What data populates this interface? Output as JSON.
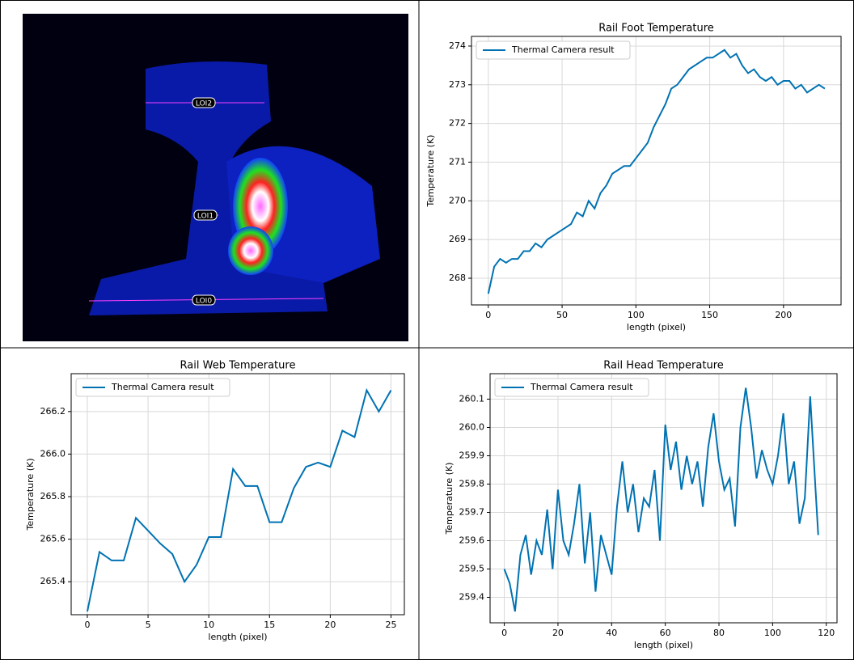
{
  "image": {
    "labels": [
      "LOI2",
      "LOI1",
      "LOI0"
    ]
  },
  "chart_data": [
    {
      "type": "line",
      "title": "Rail Foot Temperature",
      "x_label": "length (pixel)",
      "y_label": "Temperature (K)",
      "x": [
        0,
        4,
        8,
        12,
        16,
        20,
        24,
        28,
        32,
        36,
        40,
        44,
        48,
        52,
        56,
        60,
        64,
        68,
        72,
        76,
        80,
        84,
        88,
        92,
        96,
        100,
        104,
        108,
        112,
        116,
        120,
        124,
        128,
        132,
        136,
        140,
        144,
        148,
        152,
        156,
        160,
        164,
        168,
        172,
        176,
        180,
        184,
        188,
        192,
        196,
        200,
        204,
        208,
        212,
        216,
        220,
        224,
        228
      ],
      "series": [
        {
          "name": "Thermal Camera result",
          "color": "#0072b2",
          "values": [
            267.6,
            268.3,
            268.5,
            268.4,
            268.5,
            268.5,
            268.7,
            268.7,
            268.9,
            268.8,
            269.0,
            269.1,
            269.2,
            269.3,
            269.4,
            269.7,
            269.6,
            270.0,
            269.8,
            270.2,
            270.4,
            270.7,
            270.8,
            270.9,
            270.9,
            271.1,
            271.3,
            271.5,
            271.9,
            272.2,
            272.5,
            272.9,
            273.0,
            273.2,
            273.4,
            273.5,
            273.6,
            273.7,
            273.7,
            273.8,
            273.9,
            273.7,
            273.8,
            273.5,
            273.3,
            273.4,
            273.2,
            273.1,
            273.2,
            273.0,
            273.1,
            273.1,
            272.9,
            273.0,
            272.8,
            272.9,
            273.0,
            272.9
          ]
        }
      ],
      "xlim": [
        -11.4,
        239
      ],
      "xticks": [
        0,
        50,
        100,
        150,
        200
      ],
      "ylim": [
        267.31,
        274.25
      ],
      "yticks": [
        268,
        269,
        270,
        271,
        272,
        273,
        274
      ],
      "grid": true,
      "legend": "upper left"
    },
    {
      "type": "line",
      "title": "Rail Web Temperature",
      "x_label": "length (pixel)",
      "y_label": "Temperature (K)",
      "x": [
        0,
        1,
        2,
        3,
        4,
        5,
        6,
        7,
        8,
        9,
        10,
        11,
        12,
        13,
        14,
        15,
        16,
        17,
        18,
        19,
        20,
        21,
        22,
        23,
        24,
        25
      ],
      "series": [
        {
          "name": "Thermal Camera result",
          "color": "#0072b2",
          "values": [
            265.26,
            265.54,
            265.5,
            265.5,
            265.7,
            265.64,
            265.58,
            265.53,
            265.4,
            265.48,
            265.61,
            265.61,
            265.93,
            265.85,
            265.85,
            265.68,
            265.68,
            265.84,
            265.94,
            265.96,
            265.94,
            266.11,
            266.08,
            266.3,
            266.2,
            266.3
          ]
        }
      ],
      "xlim": [
        -1.33,
        26.1
      ],
      "xticks": [
        0,
        5,
        10,
        15,
        20,
        25
      ],
      "ylim": [
        265.245,
        266.378
      ],
      "yticks": [
        265.4,
        265.6,
        265.8,
        {
          "value": 266,
          "label": "266.0"
        },
        266.2
      ],
      "grid": true,
      "legend": "upper left"
    },
    {
      "type": "line",
      "title": "Rail Head Temperature",
      "x_label": "length (pixel)",
      "y_label": "Temperature (K)",
      "x": [
        0,
        2,
        4,
        6,
        8,
        10,
        12,
        14,
        16,
        18,
        20,
        22,
        24,
        26,
        28,
        30,
        32,
        34,
        36,
        38,
        40,
        42,
        44,
        46,
        48,
        50,
        52,
        54,
        56,
        58,
        60,
        62,
        64,
        66,
        68,
        70,
        72,
        74,
        76,
        78,
        80,
        82,
        84,
        86,
        88,
        90,
        92,
        94,
        96,
        98,
        100,
        102,
        104,
        106,
        108,
        110,
        112,
        114,
        116,
        117
      ],
      "series": [
        {
          "name": "Thermal Camera result",
          "color": "#0072b2",
          "values": [
            259.5,
            259.45,
            259.35,
            259.55,
            259.62,
            259.48,
            259.6,
            259.55,
            259.71,
            259.5,
            259.78,
            259.6,
            259.55,
            259.66,
            259.8,
            259.52,
            259.7,
            259.42,
            259.62,
            259.55,
            259.48,
            259.72,
            259.88,
            259.7,
            259.8,
            259.63,
            259.75,
            259.72,
            259.85,
            259.6,
            260.01,
            259.85,
            259.95,
            259.78,
            259.9,
            259.8,
            259.88,
            259.72,
            259.93,
            260.05,
            259.88,
            259.78,
            259.82,
            259.65,
            260.0,
            260.14,
            260.0,
            259.82,
            259.92,
            259.85,
            259.8,
            259.9,
            260.05,
            259.8,
            259.88,
            259.66,
            259.75,
            260.11,
            259.78,
            259.62
          ]
        }
      ],
      "xlim": [
        -5.3,
        124
      ],
      "xticks": [
        0,
        20,
        40,
        60,
        80,
        100,
        120
      ],
      "ylim": [
        259.31,
        260.19
      ],
      "yticks": [
        259.4,
        259.5,
        259.6,
        259.7,
        259.8,
        259.9,
        {
          "value": 260,
          "label": "260.0"
        },
        260.1
      ],
      "grid": true,
      "legend": "upper left"
    }
  ]
}
